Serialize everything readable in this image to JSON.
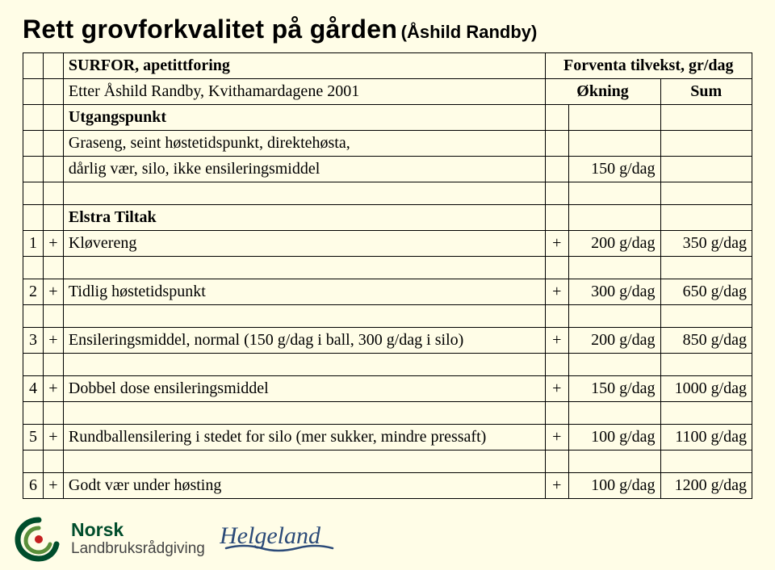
{
  "title_main": "Rett grovforkvalitet på gården",
  "title_sub": "(Åshild Randby)",
  "header": {
    "col1_a": "SURFOR, apetittforing",
    "col1_b": "Etter Åshild Randby, Kvithamardagene 2001",
    "col2_a": "Forventa tilvekst, gr/dag",
    "col2_b_left": "Økning",
    "col2_b_right": "Sum"
  },
  "base": {
    "label1": "Utgangspunkt",
    "label2": "Graseng, seint høstetidspunkt, direktehøsta,",
    "label3": "dårlig vær, silo, ikke ensileringsmiddel",
    "value": "150 g/dag"
  },
  "section_title": "Elstra Tiltak",
  "rows": [
    {
      "n": "1",
      "s": "+",
      "desc": "Kløvereng",
      "p": "+",
      "val": "200 g/dag",
      "sum": "350 g/dag"
    },
    {
      "n": "2",
      "s": "+",
      "desc": "Tidlig høstetidspunkt",
      "p": "+",
      "val": "300 g/dag",
      "sum": "650 g/dag"
    },
    {
      "n": "3",
      "s": "+",
      "desc": "Ensileringsmiddel, normal (150 g/dag i ball, 300 g/dag i silo)",
      "p": "+",
      "val": "200 g/dag",
      "sum": "850 g/dag"
    },
    {
      "n": "4",
      "s": "+",
      "desc": "Dobbel dose ensileringsmiddel",
      "p": "+",
      "val": "150 g/dag",
      "sum": "1000 g/dag"
    },
    {
      "n": "5",
      "s": "+",
      "desc": "Rundballensilering i stedet for silo (mer sukker, mindre pressaft)",
      "p": "+",
      "val": "100 g/dag",
      "sum": "1100 g/dag"
    },
    {
      "n": "6",
      "s": "+",
      "desc": "Godt vær under høsting",
      "p": "+",
      "val": "100 g/dag",
      "sum": "1200 g/dag"
    }
  ],
  "logo": {
    "main": "Norsk",
    "sub": "Landbruksrådgiving",
    "region": "Helgeland"
  },
  "colors": {
    "bg": "#fffde7",
    "text": "#000000",
    "logo_green": "#004d2c",
    "logo_gray": "#444444",
    "logo_helgeland": "#2b4a78"
  }
}
